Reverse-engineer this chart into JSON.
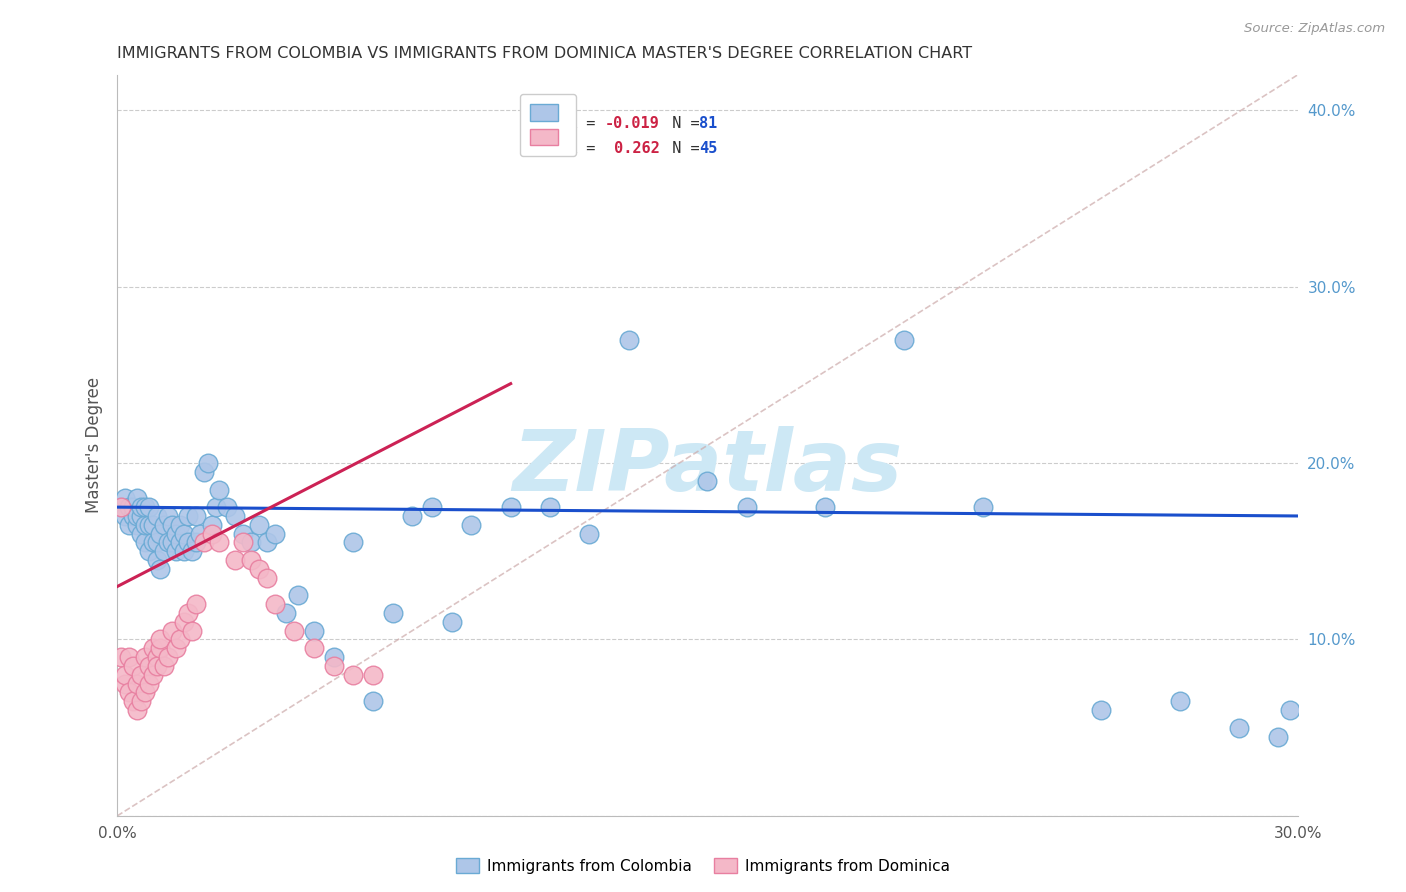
{
  "title": "IMMIGRANTS FROM COLOMBIA VS IMMIGRANTS FROM DOMINICA MASTER'S DEGREE CORRELATION CHART",
  "source": "Source: ZipAtlas.com",
  "ylabel": "Master's Degree",
  "xlim": [
    0.0,
    0.3
  ],
  "ylim": [
    0.0,
    0.42
  ],
  "x_minor_ticks": [
    0.0,
    0.03,
    0.06,
    0.09,
    0.12,
    0.15,
    0.18,
    0.21,
    0.24,
    0.27,
    0.3
  ],
  "yticks": [
    0.0,
    0.1,
    0.2,
    0.3,
    0.4
  ],
  "colombia_color": "#aec6e8",
  "colombia_edge_color": "#6aaad4",
  "dominica_color": "#f4b8c8",
  "dominica_edge_color": "#e87fa0",
  "colombia_line_color": "#1a4fcc",
  "dominica_line_color": "#cc2255",
  "diag_line_color": "#ccaaaa",
  "colombia_x": [
    0.001,
    0.002,
    0.002,
    0.003,
    0.003,
    0.004,
    0.004,
    0.005,
    0.005,
    0.005,
    0.006,
    0.006,
    0.006,
    0.007,
    0.007,
    0.007,
    0.008,
    0.008,
    0.008,
    0.009,
    0.009,
    0.01,
    0.01,
    0.01,
    0.011,
    0.011,
    0.012,
    0.012,
    0.013,
    0.013,
    0.014,
    0.014,
    0.015,
    0.015,
    0.016,
    0.016,
    0.017,
    0.017,
    0.018,
    0.018,
    0.019,
    0.02,
    0.02,
    0.021,
    0.022,
    0.023,
    0.024,
    0.025,
    0.026,
    0.028,
    0.03,
    0.032,
    0.034,
    0.036,
    0.038,
    0.04,
    0.043,
    0.046,
    0.05,
    0.055,
    0.06,
    0.065,
    0.07,
    0.075,
    0.08,
    0.085,
    0.09,
    0.1,
    0.11,
    0.12,
    0.13,
    0.15,
    0.16,
    0.18,
    0.2,
    0.22,
    0.25,
    0.27,
    0.285,
    0.295,
    0.298
  ],
  "colombia_y": [
    0.175,
    0.18,
    0.17,
    0.175,
    0.165,
    0.17,
    0.175,
    0.165,
    0.17,
    0.18,
    0.16,
    0.17,
    0.175,
    0.155,
    0.165,
    0.175,
    0.15,
    0.165,
    0.175,
    0.155,
    0.165,
    0.145,
    0.155,
    0.17,
    0.14,
    0.16,
    0.15,
    0.165,
    0.155,
    0.17,
    0.155,
    0.165,
    0.15,
    0.16,
    0.155,
    0.165,
    0.15,
    0.16,
    0.155,
    0.17,
    0.15,
    0.155,
    0.17,
    0.16,
    0.195,
    0.2,
    0.165,
    0.175,
    0.185,
    0.175,
    0.17,
    0.16,
    0.155,
    0.165,
    0.155,
    0.16,
    0.115,
    0.125,
    0.105,
    0.09,
    0.155,
    0.065,
    0.115,
    0.17,
    0.175,
    0.11,
    0.165,
    0.175,
    0.175,
    0.16,
    0.27,
    0.19,
    0.175,
    0.175,
    0.27,
    0.175,
    0.06,
    0.065,
    0.05,
    0.045,
    0.06
  ],
  "dominica_x": [
    0.001,
    0.001,
    0.002,
    0.002,
    0.003,
    0.003,
    0.004,
    0.004,
    0.005,
    0.005,
    0.006,
    0.006,
    0.007,
    0.007,
    0.008,
    0.008,
    0.009,
    0.009,
    0.01,
    0.01,
    0.011,
    0.011,
    0.012,
    0.013,
    0.014,
    0.015,
    0.016,
    0.017,
    0.018,
    0.019,
    0.02,
    0.022,
    0.024,
    0.026,
    0.03,
    0.032,
    0.034,
    0.036,
    0.038,
    0.04,
    0.045,
    0.05,
    0.055,
    0.06,
    0.065
  ],
  "dominica_y": [
    0.175,
    0.09,
    0.075,
    0.08,
    0.09,
    0.07,
    0.085,
    0.065,
    0.075,
    0.06,
    0.065,
    0.08,
    0.07,
    0.09,
    0.085,
    0.075,
    0.095,
    0.08,
    0.09,
    0.085,
    0.095,
    0.1,
    0.085,
    0.09,
    0.105,
    0.095,
    0.1,
    0.11,
    0.115,
    0.105,
    0.12,
    0.155,
    0.16,
    0.155,
    0.145,
    0.155,
    0.145,
    0.14,
    0.135,
    0.12,
    0.105,
    0.095,
    0.085,
    0.08,
    0.08
  ],
  "background_color": "#ffffff",
  "grid_color": "#cccccc",
  "watermark_text": "ZIPatlas",
  "watermark_color": "#cde8f5",
  "legend_colombia_label": "Immigrants from Colombia",
  "legend_dominica_label": "Immigrants from Dominica"
}
